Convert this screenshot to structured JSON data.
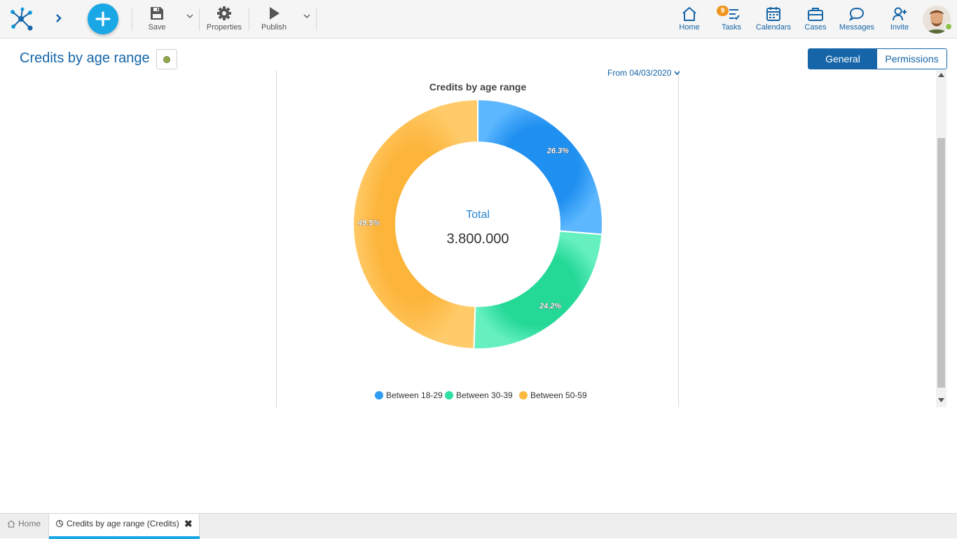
{
  "toolbar": {
    "save_label": "Save",
    "properties_label": "Properties",
    "publish_label": "Publish",
    "icons": [
      "logo-icon",
      "chevron-right-icon",
      "plus-icon",
      "floppy-icon",
      "gear-icon",
      "play-icon",
      "chevron-down-icon"
    ]
  },
  "nav": {
    "home_label": "Home",
    "tasks_label": "Tasks",
    "tasks_badge": "9",
    "calendars_label": "Calendars",
    "cases_label": "Cases",
    "messages_label": "Messages",
    "invite_label": "Invite",
    "presence_color": "#8bc34a"
  },
  "page": {
    "title": "Credits by age range",
    "tabs": [
      "General",
      "Permissions"
    ],
    "active_tab": "General",
    "date_filter": "From 04/03/2020"
  },
  "chart_data": {
    "type": "pie",
    "donut": true,
    "title": "Credits by age range",
    "center_label": "Total",
    "center_value": "3.800.000",
    "categories": [
      "Between 18-29",
      "Between 30-39",
      "Between 50-59"
    ],
    "values": [
      26.3,
      24.2,
      49.5
    ],
    "value_labels": [
      "26.3%",
      "24.2%",
      "49.5%"
    ],
    "colors": [
      "#2e9bf5",
      "#2ee0a1",
      "#fdb93f"
    ],
    "legend_position": "bottom"
  },
  "bottom_tabs": {
    "home_label": "Home",
    "active_label": "Credits by age range (Credits)"
  },
  "accent": {
    "primary": "#1565a8",
    "fab": "#1aa7e6"
  }
}
